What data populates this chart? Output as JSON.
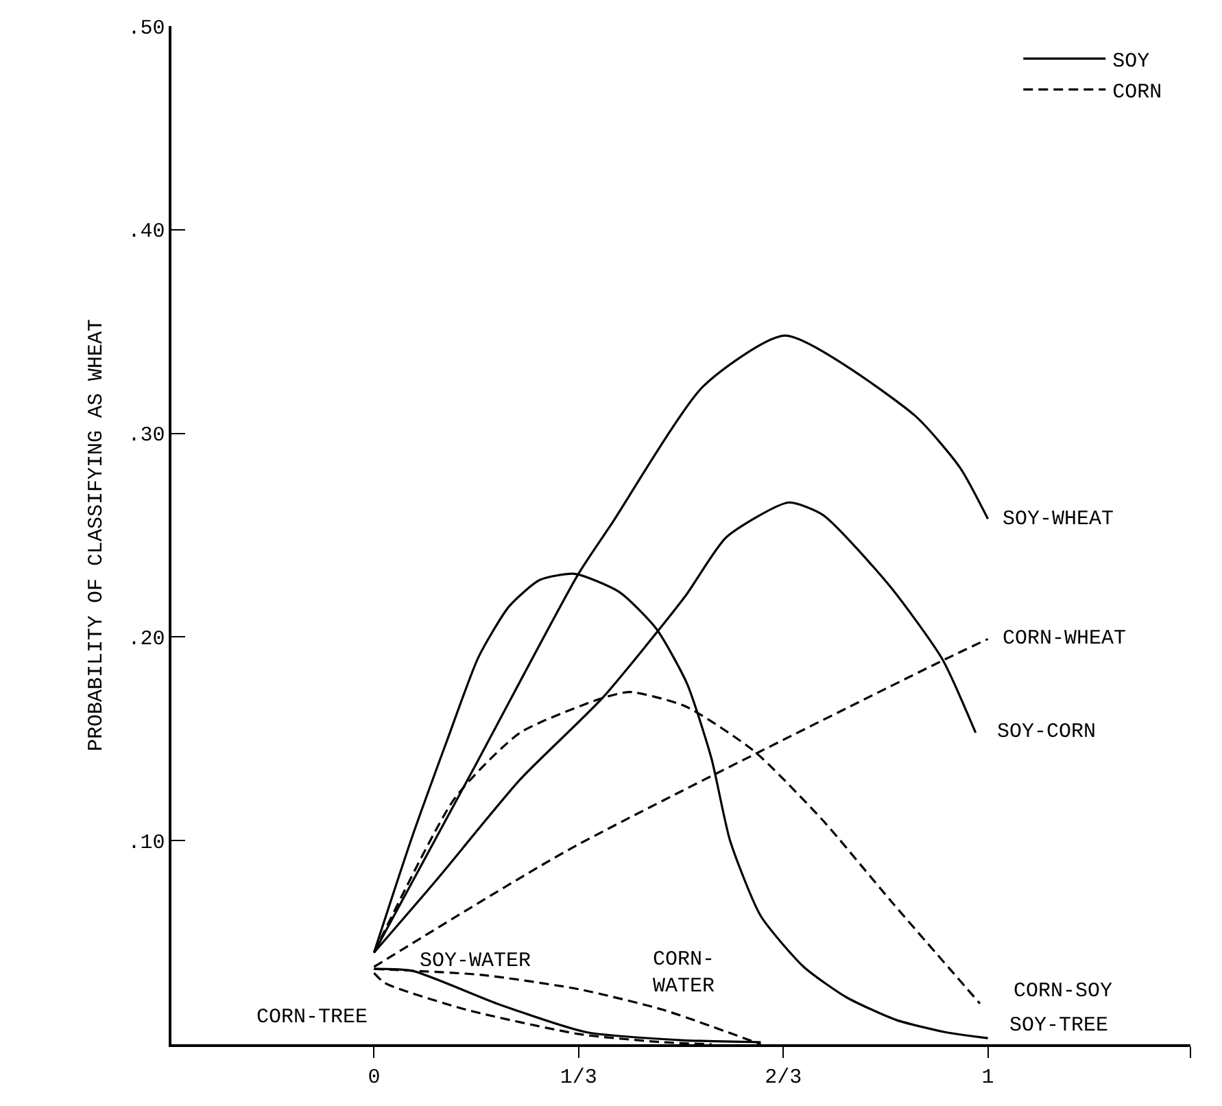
{
  "chart_data": {
    "type": "line",
    "ylabel": "PROBABILITY OF CLASSIFYING AS WHEAT",
    "xlim": [
      -0.33,
      1.33
    ],
    "xticks": [
      0,
      {
        "value": 0.3333,
        "label": "1/3"
      },
      {
        "value": 0.6667,
        "label": "2/3"
      },
      1,
      {
        "value": 1.33,
        "label": null
      }
    ],
    "ylim": [
      0,
      0.5
    ],
    "yticks": [
      {
        "value": 0.1,
        "label": ".10"
      },
      {
        "value": 0.2,
        "label": ".20"
      },
      {
        "value": 0.3,
        "label": ".30"
      },
      {
        "value": 0.4,
        "label": ".40"
      },
      {
        "value": 0.5,
        "label": ".50"
      }
    ],
    "grid": false,
    "legend": "top right",
    "marker": "none",
    "series": [
      {
        "name": "SOY-WHEAT",
        "color": "#000000",
        "line_style": "solid",
        "x": [
          0,
          0.167,
          0.333,
          0.388,
          0.536,
          0.67,
          0.88,
          0.955,
          1.0
        ],
        "values": [
          0.045,
          0.138,
          0.231,
          0.256,
          0.323,
          0.348,
          0.309,
          0.283,
          0.258
        ]
      },
      {
        "name": "SOY-CORN",
        "color": "#000000",
        "line_style": "solid",
        "x": [
          0,
          0.1,
          0.238,
          0.372,
          0.507,
          0.574,
          0.675,
          0.731,
          0.843,
          0.926,
          0.98
        ],
        "values": [
          0.045,
          0.08,
          0.13,
          0.17,
          0.22,
          0.249,
          0.266,
          0.26,
          0.224,
          0.189,
          0.153
        ]
      },
      {
        "name": "SOY-TREE",
        "color": "#000000",
        "line_style": "solid",
        "x": [
          0,
          0.06,
          0.12,
          0.17,
          0.22,
          0.27,
          0.327,
          0.4,
          0.46,
          0.51,
          0.55,
          0.58,
          0.63,
          0.7,
          0.77,
          0.85,
          0.93,
          1.0
        ],
        "values": [
          0.045,
          0.1,
          0.15,
          0.19,
          0.215,
          0.228,
          0.231,
          0.222,
          0.204,
          0.177,
          0.14,
          0.1,
          0.063,
          0.038,
          0.023,
          0.012,
          0.006,
          0.003
        ]
      },
      {
        "name": "SOY-WATER",
        "color": "#000000",
        "line_style": "solid",
        "x": [
          0,
          0.063,
          0.2,
          0.345,
          0.5,
          0.63
        ],
        "values": [
          0.037,
          0.036,
          0.02,
          0.006,
          0.002,
          0.001
        ]
      },
      {
        "name": "CORN-WHEAT",
        "color": "#000000",
        "line_style": "dashed",
        "x": [
          0,
          0.32,
          0.93,
          1.0
        ],
        "values": [
          0.038,
          0.096,
          0.189,
          0.199
        ]
      },
      {
        "name": "CORN-SOY",
        "color": "#000000",
        "line_style": "dashed",
        "x": [
          0,
          0.132,
          0.238,
          0.372,
          0.417,
          0.507,
          0.619,
          0.731,
          0.843,
          0.987
        ],
        "values": [
          0.045,
          0.121,
          0.153,
          0.17,
          0.173,
          0.166,
          0.144,
          0.11,
          0.07,
          0.02
        ]
      },
      {
        "name": "CORN-WATER",
        "color": "#000000",
        "line_style": "dashed",
        "x": [
          0,
          0.177,
          0.334,
          0.47,
          0.63
        ],
        "values": [
          0.037,
          0.034,
          0.027,
          0.017,
          0.0
        ]
      },
      {
        "name": "CORN-TREE",
        "color": "#000000",
        "line_style": "dashed",
        "x": [
          0,
          0.018,
          0.15,
          0.334,
          0.47,
          0.55
        ],
        "values": [
          0.035,
          0.03,
          0.017,
          0.005,
          0.001,
          0.0
        ]
      },
      {
        "name": "SOY",
        "color": "#000000",
        "line_style": "solid"
      },
      {
        "name": "CORN",
        "color": "#000000",
        "line_style": "dashed"
      }
    ]
  }
}
